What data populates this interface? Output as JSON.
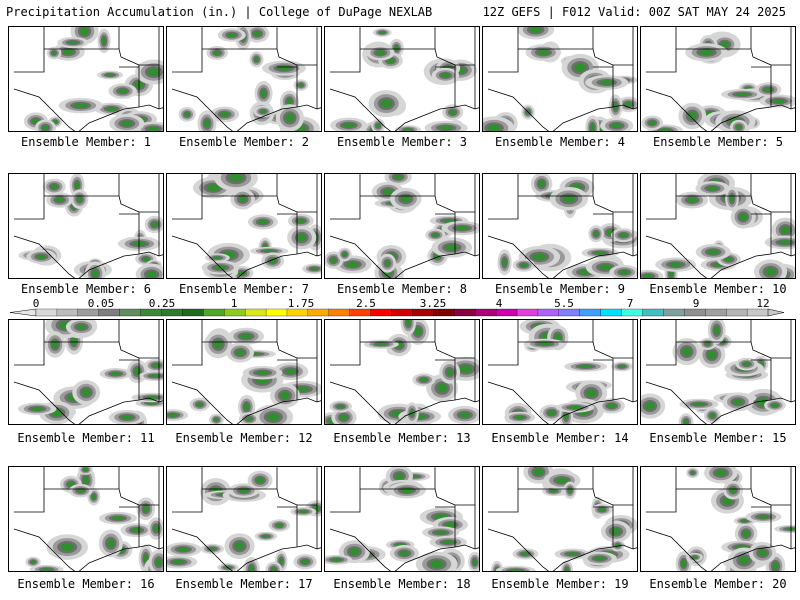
{
  "header": {
    "left": "Precipitation Accumulation (in.) | College of DuPage NEXLAB",
    "right": "12Z GEFS | F012 Valid: 00Z SAT MAY 24 2025"
  },
  "panels": [
    {
      "label": "Ensemble Member: 1"
    },
    {
      "label": "Ensemble Member: 2"
    },
    {
      "label": "Ensemble Member: 3"
    },
    {
      "label": "Ensemble Member: 4"
    },
    {
      "label": "Ensemble Member: 5"
    },
    {
      "label": "Ensemble Member: 6"
    },
    {
      "label": "Ensemble Member: 7"
    },
    {
      "label": "Ensemble Member: 8"
    },
    {
      "label": "Ensemble Member: 9"
    },
    {
      "label": "Ensemble Member: 10"
    },
    {
      "label": "Ensemble Member: 11"
    },
    {
      "label": "Ensemble Member: 12"
    },
    {
      "label": "Ensemble Member: 13"
    },
    {
      "label": "Ensemble Member: 14"
    },
    {
      "label": "Ensemble Member: 15"
    },
    {
      "label": "Ensemble Member: 16"
    },
    {
      "label": "Ensemble Member: 17"
    },
    {
      "label": "Ensemble Member: 18"
    },
    {
      "label": "Ensemble Member: 19"
    },
    {
      "label": "Ensemble Member: 20"
    }
  ],
  "colorbar": {
    "tick_labels": [
      "0",
      "0.05",
      "0.25",
      "1",
      "1.75",
      "2.5",
      "3.25",
      "4",
      "5.5",
      "7",
      "9",
      "12"
    ],
    "colors": [
      "#d9d9d9",
      "#bdbdbd",
      "#9e9e9e",
      "#7f7f7f",
      "#5f8f5f",
      "#3a8a3a",
      "#2e7d2e",
      "#1f6b1f",
      "#4fa82a",
      "#8ccc1a",
      "#d8e81a",
      "#ffff00",
      "#ffd400",
      "#ffaa00",
      "#ff7f00",
      "#ff4000",
      "#ff0000",
      "#d40000",
      "#aa0000",
      "#800000",
      "#8b0040",
      "#b0007a",
      "#d000b0",
      "#e040e0",
      "#b060ff",
      "#7f7fff",
      "#40a0ff",
      "#00e0ff",
      "#40ffe0",
      "#40c0c0",
      "#80a0a0",
      "#909090",
      "#a0a0a0",
      "#b5b5b5",
      "#c8c8c8"
    ]
  },
  "legend_colors": {
    "light": "#d6d6d6",
    "mid": "#9a9a9a",
    "dark": "#6e6e6e",
    "green": "#2f8f2f",
    "bright": "#8fd12a"
  }
}
